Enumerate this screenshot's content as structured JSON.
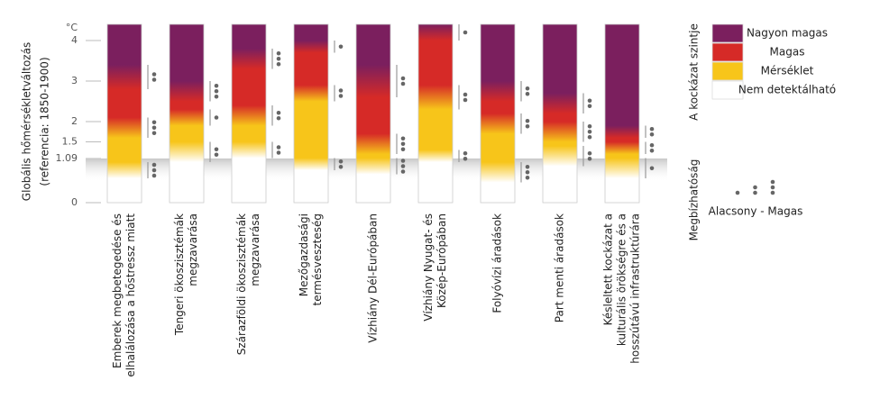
{
  "chart_data": {
    "type": "embers",
    "y_label": [
      "Globális hőmérsékletváltozás",
      "(referencia: 1850-1900)"
    ],
    "y_unit": "°C",
    "ylim": [
      0,
      4.4
    ],
    "yticks": [
      0,
      1.09,
      1.5,
      2,
      3,
      4
    ],
    "levels": [
      {
        "name": "Nagyon magas",
        "color": "#7b1f5e"
      },
      {
        "name": "Magas",
        "color": "#d62a27"
      },
      {
        "name": "Mérséklet",
        "color": "#f7c51a"
      },
      {
        "name": "Nem detektálható",
        "color": "#ffffff"
      }
    ],
    "legend_title": "A kockázat szintje",
    "confidence_title": "Megbízhatóság",
    "confidence_levels": [
      1,
      2,
      3
    ],
    "confidence_label": "Alacsony - Magas",
    "categories": [
      [
        "Emberek megbetegedése és",
        "elhalálozása a hőstressz miatt"
      ],
      [
        "Tengeri ökoszisztémák",
        "megzavarása"
      ],
      [
        "Szárazföldi ökoszisztémák",
        "megzavarása"
      ],
      [
        "Mezőgazdasági",
        "termésveszteség"
      ],
      [
        "Vízhiány Dél-Európában"
      ],
      [
        "Vízhiány Nyugat- és",
        "Közép-Európában"
      ],
      [
        "Folyóvízi áradások"
      ],
      [
        "Part menti áradások"
      ],
      [
        "Késleltett kockázat a",
        "kulturális örökségre és a",
        "hosszútávú infrastruktúrára"
      ]
    ],
    "transitions": [
      [
        {
          "from": 0.6,
          "to": 1.0,
          "confidence": 3
        },
        {
          "from": 1.6,
          "to": 2.1,
          "confidence": 3
        },
        {
          "from": 2.8,
          "to": 3.4,
          "confidence": 2
        }
      ],
      [
        {
          "from": 1.0,
          "to": 1.5,
          "confidence": 2
        },
        {
          "from": 1.9,
          "to": 2.3,
          "confidence": 1
        },
        {
          "from": 2.5,
          "to": 3.0,
          "confidence": 3
        }
      ],
      [
        {
          "from": 1.1,
          "to": 1.5,
          "confidence": 2
        },
        {
          "from": 1.9,
          "to": 2.4,
          "confidence": 2
        },
        {
          "from": 3.3,
          "to": 3.8,
          "confidence": 3
        }
      ],
      [
        {
          "from": 0.8,
          "to": 1.1,
          "confidence": 2
        },
        {
          "from": 2.5,
          "to": 2.9,
          "confidence": 2
        },
        {
          "from": 3.7,
          "to": 4.0,
          "confidence": 1
        }
      ],
      [
        {
          "from": 0.7,
          "to": 1.1,
          "confidence": 3
        },
        {
          "from": 1.2,
          "to": 1.7,
          "confidence": 3
        },
        {
          "from": 2.6,
          "to": 3.4,
          "confidence": 2
        }
      ],
      [
        {
          "from": 1.0,
          "to": 1.3,
          "confidence": 2
        },
        {
          "from": 2.3,
          "to": 2.9,
          "confidence": 2
        },
        {
          "from": 4.0,
          "to": 4.4,
          "confidence": 1
        }
      ],
      [
        {
          "from": 0.5,
          "to": 1.0,
          "confidence": 3
        },
        {
          "from": 1.7,
          "to": 2.2,
          "confidence": 2
        },
        {
          "from": 2.5,
          "to": 3.0,
          "confidence": 2
        }
      ],
      [
        {
          "from": 0.9,
          "to": 1.4,
          "confidence": 2
        },
        {
          "from": 1.5,
          "to": 2.0,
          "confidence": 3
        },
        {
          "from": 2.2,
          "to": 2.7,
          "confidence": 2
        }
      ],
      [
        {
          "from": 0.6,
          "to": 1.1,
          "confidence": 1
        },
        {
          "from": 1.2,
          "to": 1.5,
          "confidence": 2
        },
        {
          "from": 1.6,
          "to": 1.9,
          "confidence": 2
        }
      ]
    ]
  }
}
